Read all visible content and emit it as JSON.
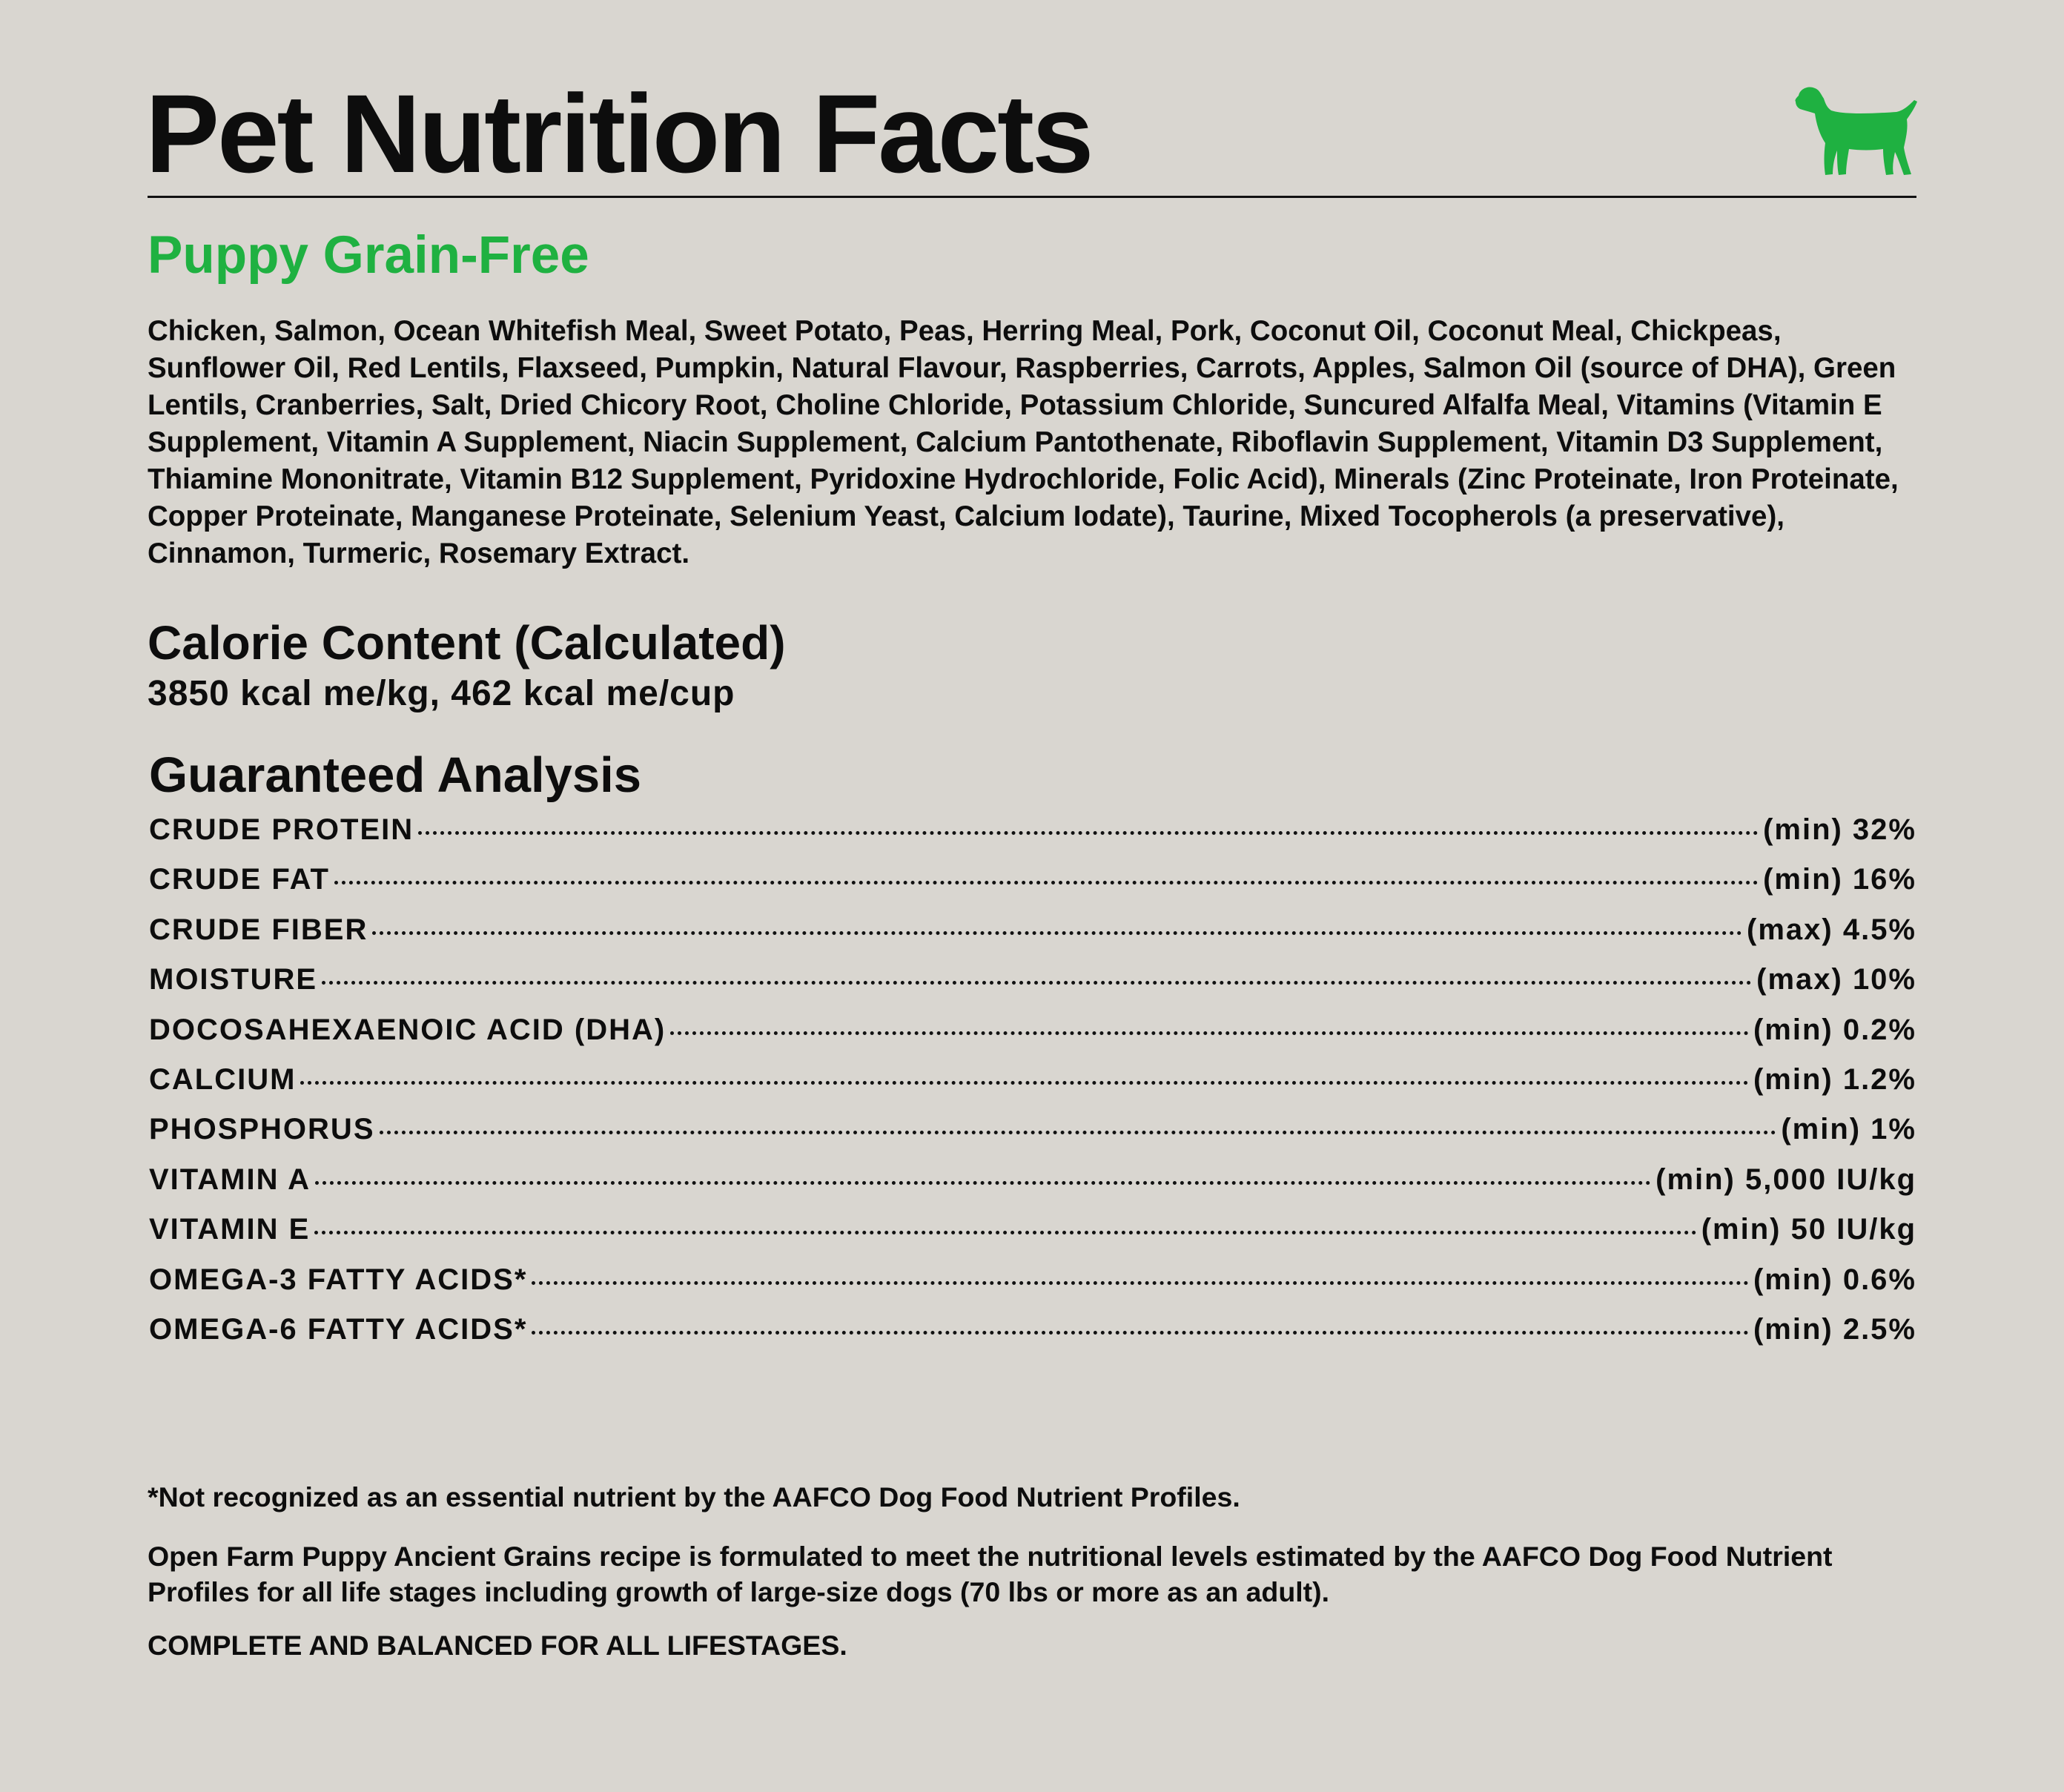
{
  "title": "Pet Nutrition Facts",
  "subtitle": "Puppy Grain-Free",
  "ingredients": "Chicken, Salmon, Ocean Whitefish Meal, Sweet Potato, Peas, Herring Meal, Pork, Coconut Oil, Coconut Meal, Chickpeas, Sunflower Oil, Red Lentils, Flaxseed, Pumpkin, Natural Flavour, Raspberries, Carrots, Apples, Salmon Oil (source of DHA), Green Lentils, Cranberries, Salt, Dried Chicory Root, Choline Chloride, Potassium Chloride, Suncured Alfalfa Meal, Vitamins (Vitamin E Supplement, Vitamin A Supplement, Niacin Supplement, Calcium Pantothenate, Riboflavin Supplement, Vitamin D3 Supplement, Thiamine Mononitrate, Vitamin B12 Supplement, Pyridoxine Hydrochloride, Folic Acid), Minerals (Zinc Proteinate, Iron Proteinate, Copper Proteinate, Manganese Proteinate, Selenium Yeast, Calcium Iodate), Taurine, Mixed Tocopherols (a preservative), Cinnamon, Turmeric, Rosemary Extract.",
  "calorie": {
    "heading": "Calorie Content (Calculated)",
    "value": "3850 kcal me/kg, 462 kcal me/cup"
  },
  "analysis": {
    "heading": "Guaranteed Analysis",
    "rows": [
      {
        "nutrient": "CRUDE PROTEIN",
        "value": "(min) 32%"
      },
      {
        "nutrient": "CRUDE FAT",
        "value": "(min) 16%"
      },
      {
        "nutrient": "CRUDE FIBER",
        "value": "(max) 4.5%"
      },
      {
        "nutrient": "MOISTURE",
        "value": "(max) 10%"
      },
      {
        "nutrient": "DOCOSAHEXAENOIC ACID (DHA)",
        "value": "(min) 0.2%"
      },
      {
        "nutrient": "CALCIUM",
        "value": "(min) 1.2%"
      },
      {
        "nutrient": "PHOSPHORUS",
        "value": "(min) 1%"
      },
      {
        "nutrient": "VITAMIN A",
        "value": "(min) 5,000 IU/kg"
      },
      {
        "nutrient": "VITAMIN E",
        "value": "(min) 50 IU/kg"
      },
      {
        "nutrient": "OMEGA-3 FATTY ACIDS*",
        "value": "(min) 0.6%"
      },
      {
        "nutrient": "OMEGA-6 FATTY ACIDS*",
        "value": "(min) 2.5%"
      }
    ]
  },
  "footnotes": [
    "*Not recognized as an essential nutrient by the AAFCO Dog Food Nutrient Profiles.",
    "Open Farm Puppy Ancient Grains recipe is formulated to meet the nutritional levels estimated by the AAFCO Dog Food Nutrient Profiles for all life stages including growth of large-size dogs  (70 lbs or more as an adult).",
    "COMPLETE AND BALANCED FOR ALL LIFESTAGES."
  ]
}
